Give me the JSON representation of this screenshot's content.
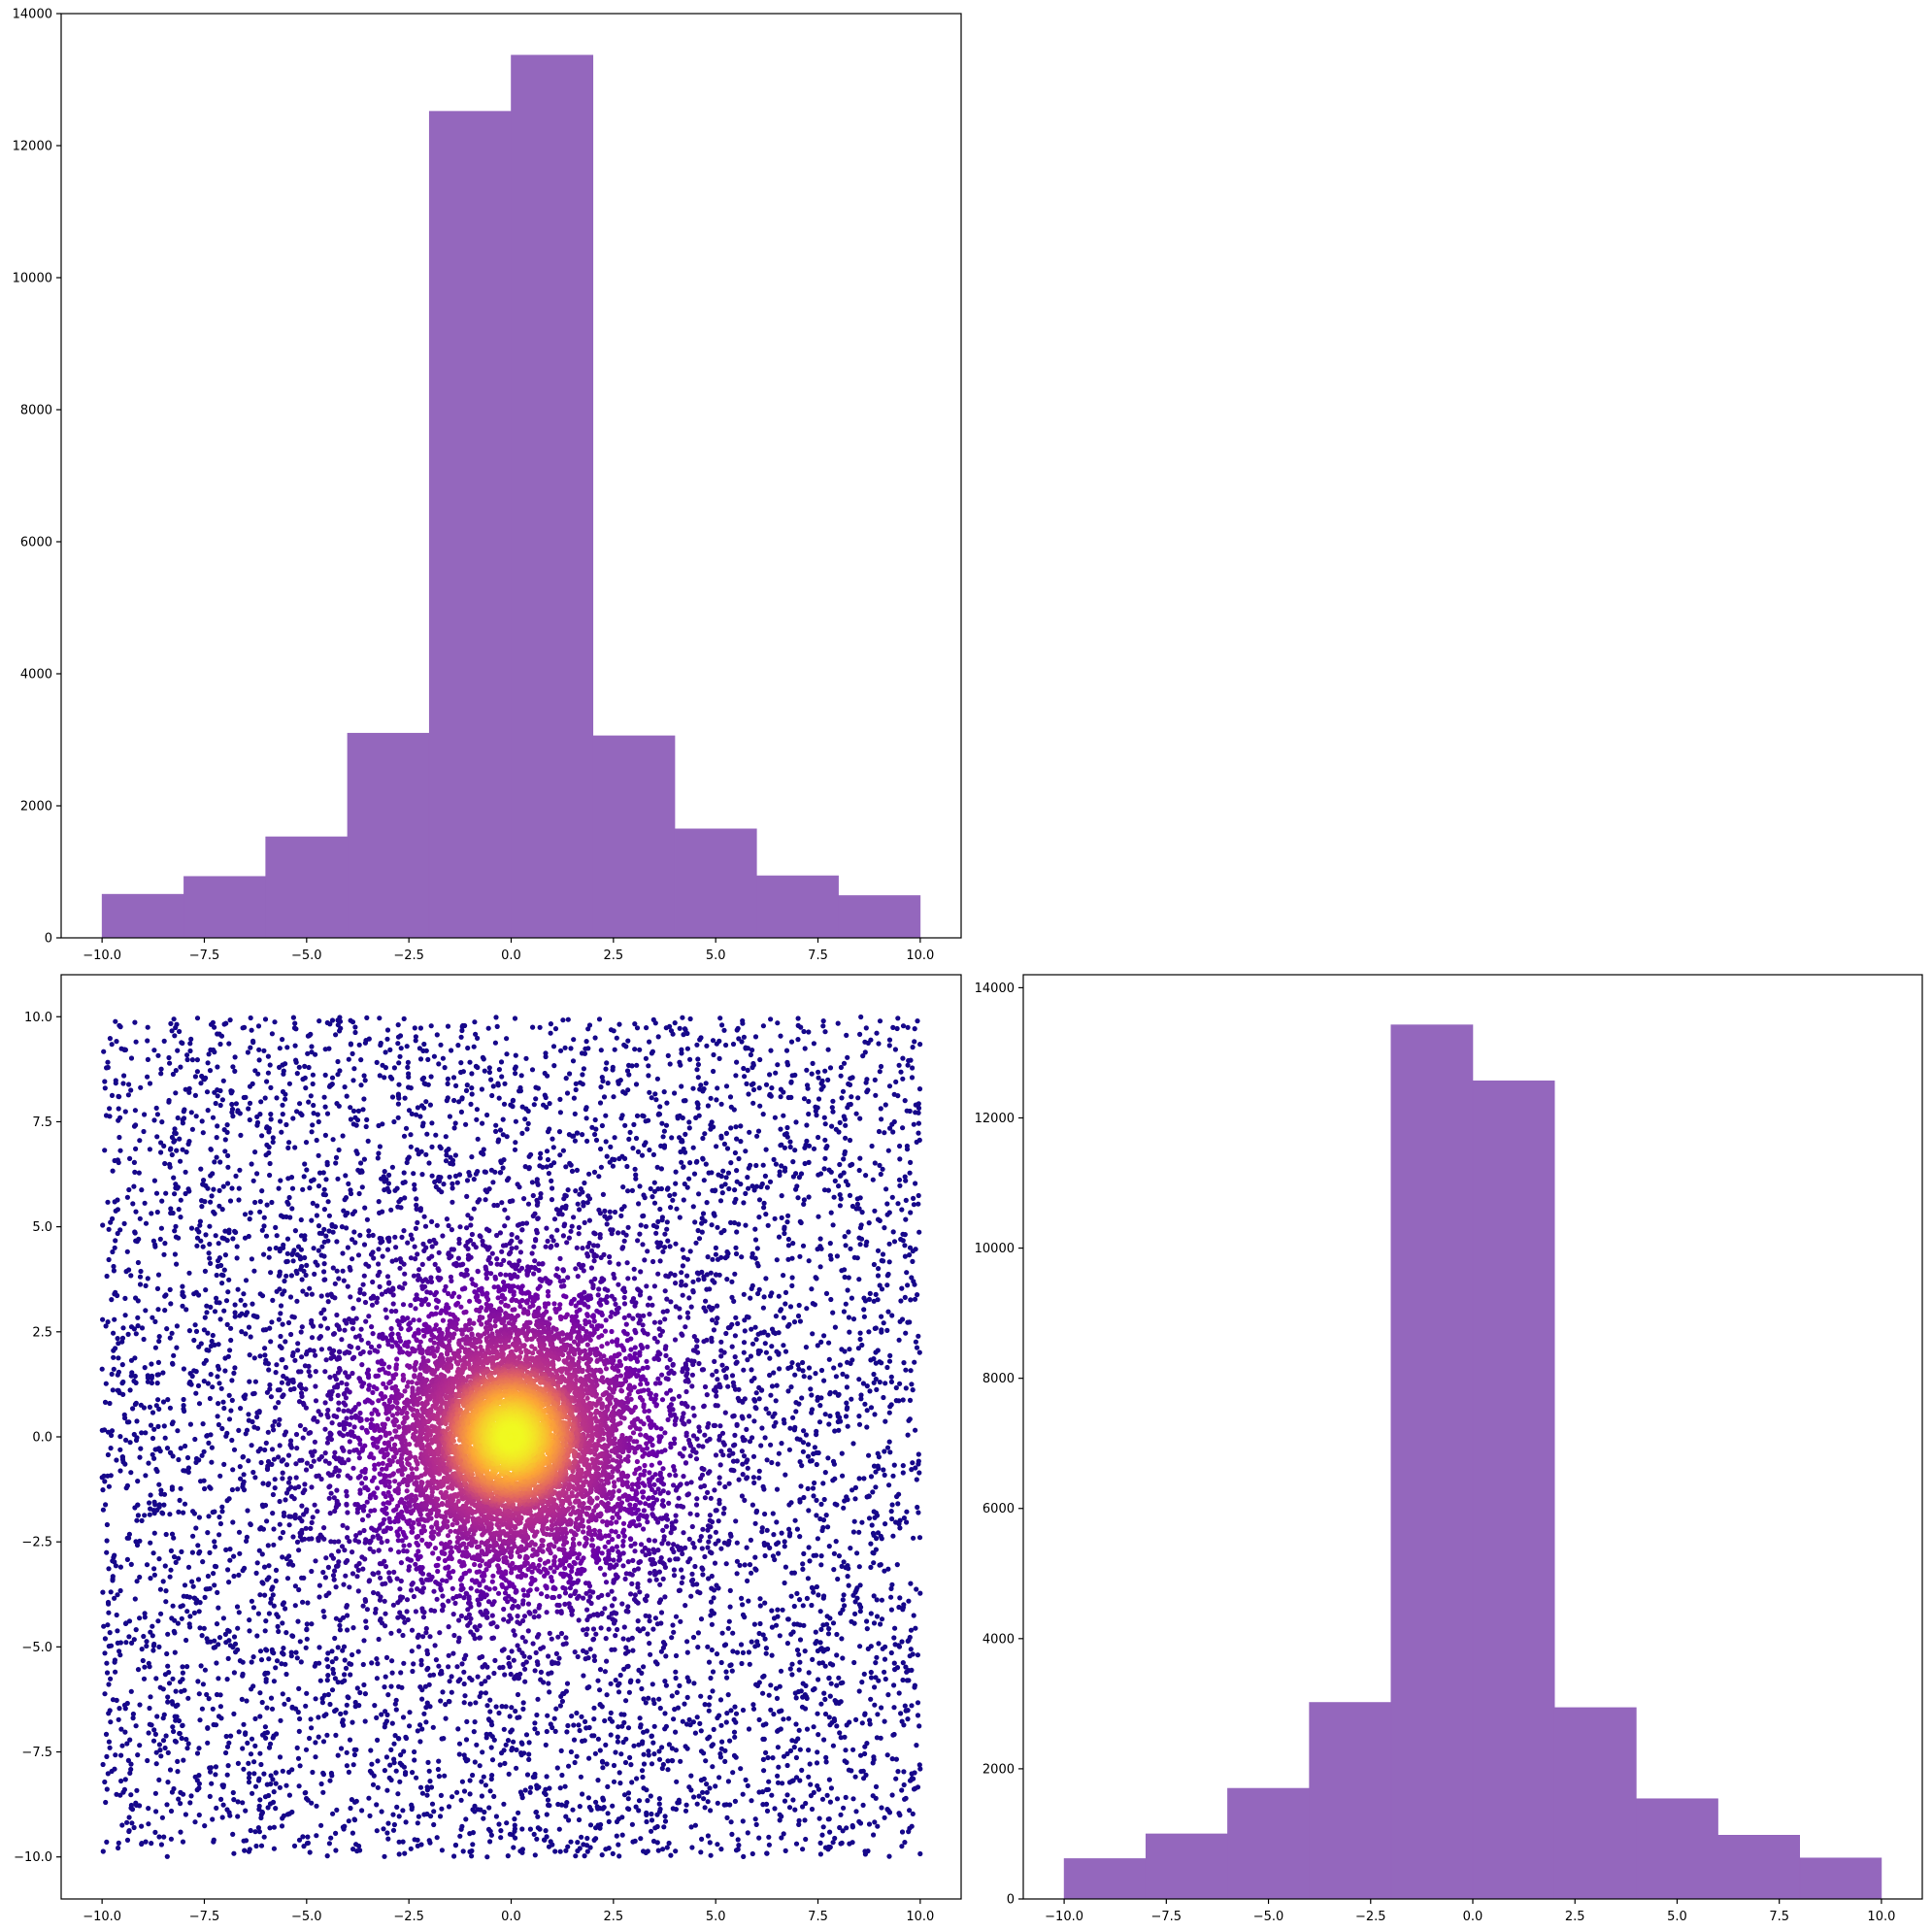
{
  "chart_data": [
    {
      "id": "top-left-histogram",
      "type": "bar",
      "subtype": "histogram",
      "title": "",
      "xlabel": "",
      "ylabel": "",
      "bin_edges": [
        -10,
        -8,
        -6,
        -4,
        -2,
        0,
        2,
        4,
        6,
        8,
        10
      ],
      "values": [
        660,
        930,
        1530,
        3100,
        12520,
        13370,
        3060,
        1650,
        940,
        640
      ],
      "xlim": [
        -11,
        11
      ],
      "ylim": [
        0,
        14000
      ],
      "xticks": [
        -10.0,
        -7.5,
        -5.0,
        -2.5,
        0.0,
        2.5,
        5.0,
        7.5,
        10.0
      ],
      "xtick_labels": [
        "−10.0",
        "−7.5",
        "−5.0",
        "−2.5",
        "0.0",
        "2.5",
        "5.0",
        "7.5",
        "10.0"
      ],
      "yticks": [
        0,
        2000,
        4000,
        6000,
        8000,
        10000,
        12000,
        14000
      ],
      "ytick_labels": [
        "0",
        "2000",
        "4000",
        "6000",
        "8000",
        "10000",
        "12000",
        "14000"
      ],
      "grid": false,
      "color": "#9467bd"
    },
    {
      "id": "bottom-left-scatter",
      "type": "scatter",
      "title": "",
      "xlabel": "",
      "ylabel": "",
      "description_of_data": "about 50000 points filling the square [-10,10]x[-10,10], dense near origin",
      "x_range": [
        -10,
        10
      ],
      "y_range": [
        -10,
        10
      ],
      "xlim": [
        -11,
        11
      ],
      "ylim": [
        -11,
        11
      ],
      "xticks": [
        -10.0,
        -7.5,
        -5.0,
        -2.5,
        0.0,
        2.5,
        5.0,
        7.5,
        10.0
      ],
      "xtick_labels": [
        "−10.0",
        "−7.5",
        "−5.0",
        "−2.5",
        "0.0",
        "2.5",
        "5.0",
        "7.5",
        "10.0"
      ],
      "yticks": [
        -10.0,
        -7.5,
        -5.0,
        -2.5,
        0.0,
        2.5,
        5.0,
        7.5,
        10.0
      ],
      "ytick_labels": [
        "−10.0",
        "−7.5",
        "−5.0",
        "−2.5",
        "0.0",
        "2.5",
        "5.0",
        "7.5",
        "10.0"
      ],
      "colormap": "plasma",
      "color_by": "local density",
      "colors": [
        "#0d0887",
        "#6a00a8",
        "#b12a90",
        "#e16462",
        "#fca636",
        "#f0f921"
      ],
      "grid": false
    },
    {
      "id": "bottom-right-histogram",
      "type": "bar",
      "subtype": "histogram",
      "title": "",
      "xlabel": "",
      "ylabel": "",
      "bin_edges": [
        -10,
        -8,
        -6,
        -4,
        -2,
        0,
        2,
        4,
        6,
        8,
        10
      ],
      "values": [
        620,
        1000,
        1700,
        3020,
        13430,
        12570,
        2940,
        1540,
        980,
        630
      ],
      "xlim": [
        -11,
        11
      ],
      "ylim": [
        0,
        14200
      ],
      "xticks": [
        -10.0,
        -7.5,
        -5.0,
        -2.5,
        0.0,
        2.5,
        5.0,
        7.5,
        10.0
      ],
      "xtick_labels": [
        "−10.0",
        "−7.5",
        "−5.0",
        "−2.5",
        "0.0",
        "2.5",
        "5.0",
        "7.5",
        "10.0"
      ],
      "yticks": [
        0,
        2000,
        4000,
        6000,
        8000,
        10000,
        12000,
        14000
      ],
      "ytick_labels": [
        "0",
        "2000",
        "4000",
        "6000",
        "8000",
        "10000",
        "12000",
        "14000"
      ],
      "grid": false,
      "color": "#9467bd"
    }
  ]
}
